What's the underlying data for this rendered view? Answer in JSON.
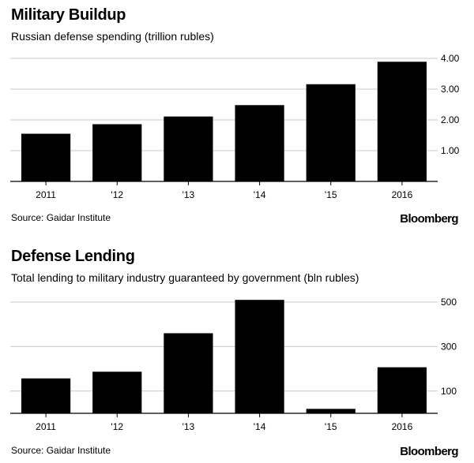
{
  "charts": [
    {
      "title": "Military Buildup",
      "subtitle": "Russian defense spending (trillion rubles)",
      "source": "Source: Gaidar Institute",
      "brand": "Bloomberg"
    },
    {
      "title": "Defense Lending",
      "subtitle": "Total lending to military industry guaranteed by government (bln rubles)",
      "source": "Source: Gaidar Institute",
      "brand": "Bloomberg"
    }
  ],
  "chart_data": [
    {
      "type": "bar",
      "title": "Military Buildup",
      "subtitle": "Russian defense spending (trillion rubles)",
      "categories": [
        "2011",
        "'12",
        "'13",
        "'14",
        "'15",
        "2016"
      ],
      "values": [
        1.55,
        1.86,
        2.11,
        2.48,
        3.16,
        3.89
      ],
      "ylim": [
        0,
        4.0
      ],
      "yticks": [
        1.0,
        2.0,
        3.0,
        4.0
      ],
      "ytick_labels": [
        "1.00",
        "2.00",
        "3.00",
        "4.00"
      ],
      "grid": true,
      "color": "#000000"
    },
    {
      "type": "bar",
      "title": "Defense Lending",
      "subtitle": "Total lending to military industry guaranteed by government (bln rubles)",
      "categories": [
        "2011",
        "'12",
        "'13",
        "'14",
        "'15",
        "2016"
      ],
      "values": [
        157,
        187,
        360,
        510,
        20,
        207
      ],
      "ylim": [
        0,
        500
      ],
      "yticks": [
        100,
        300,
        500
      ],
      "ytick_labels": [
        "100",
        "300",
        "500"
      ],
      "grid": true,
      "color": "#000000"
    }
  ]
}
